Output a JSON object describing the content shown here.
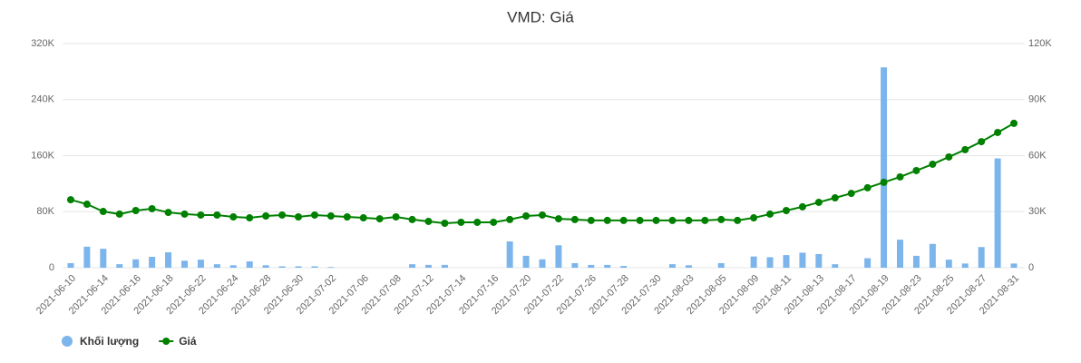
{
  "chart_data": {
    "type": "bar-line",
    "title": "VMD: Giá",
    "categories": [
      "2021-06-10",
      null,
      "2021-06-14",
      null,
      "2021-06-16",
      null,
      "2021-06-18",
      null,
      "2021-06-22",
      null,
      "2021-06-24",
      null,
      "2021-06-28",
      null,
      "2021-06-30",
      null,
      "2021-07-02",
      null,
      "2021-07-06",
      null,
      "2021-07-08",
      null,
      "2021-07-12",
      null,
      "2021-07-14",
      null,
      "2021-07-16",
      null,
      "2021-07-20",
      null,
      "2021-07-22",
      null,
      "2021-07-26",
      null,
      "2021-07-28",
      null,
      "2021-07-30",
      null,
      "2021-08-03",
      null,
      "2021-08-05",
      null,
      "2021-08-09",
      null,
      "2021-08-11",
      null,
      "2021-08-13",
      null,
      "2021-08-17",
      null,
      "2021-08-19",
      null,
      "2021-08-23",
      null,
      "2021-08-25",
      null,
      "2021-08-27",
      null,
      "2021-08-31"
    ],
    "series": [
      {
        "name": "Khối lượng",
        "color": "#7cb5ec",
        "type": "bar",
        "axis": "y",
        "values": [
          6500,
          30000,
          27000,
          5000,
          12000,
          15500,
          22000,
          10000,
          11500,
          5000,
          3500,
          9000,
          3500,
          2000,
          2000,
          2000,
          1000,
          0,
          0,
          0,
          0,
          5000,
          4000,
          4000,
          0,
          0,
          0,
          37500,
          17000,
          12000,
          32000,
          6500,
          4000,
          4000,
          2500,
          0,
          0,
          5000,
          3500,
          0,
          6500,
          0,
          16000,
          15000,
          18000,
          21500,
          19500,
          5000,
          0,
          13500,
          286000,
          40000,
          17000,
          34000,
          11500,
          6000,
          29500,
          156000,
          6000
        ]
      },
      {
        "name": "Giá",
        "color": "#008000",
        "type": "line",
        "axis": "y2",
        "values": [
          36400,
          34000,
          30100,
          28700,
          30600,
          31600,
          29600,
          28700,
          28200,
          28200,
          27200,
          26700,
          27700,
          28200,
          27200,
          28200,
          27700,
          27200,
          26700,
          26200,
          27200,
          25800,
          24800,
          23800,
          24300,
          24300,
          24300,
          25800,
          27700,
          28200,
          26200,
          25800,
          25300,
          25300,
          25300,
          25300,
          25300,
          25300,
          25300,
          25300,
          25800,
          25300,
          26700,
          28700,
          30600,
          32600,
          35000,
          37400,
          39800,
          42800,
          45700,
          48600,
          52000,
          55400,
          59300,
          63200,
          67500,
          72400,
          77300
        ]
      }
    ],
    "ylim": [
      0,
      320000
    ],
    "yticks": [
      0,
      {
        "value": 80000,
        "label": "80K"
      },
      {
        "value": 160000,
        "label": "160K"
      },
      {
        "value": 240000,
        "label": "240K"
      },
      {
        "value": 320000,
        "label": "320K"
      }
    ],
    "y2lim": [
      0,
      120000
    ],
    "y2ticks": [
      0,
      {
        "value": 30000,
        "label": "30K"
      },
      {
        "value": 60000,
        "label": "60K"
      },
      {
        "value": 90000,
        "label": "90K"
      },
      {
        "value": 120000,
        "label": "120K"
      }
    ],
    "grid": true,
    "legend": "bottom-left"
  }
}
